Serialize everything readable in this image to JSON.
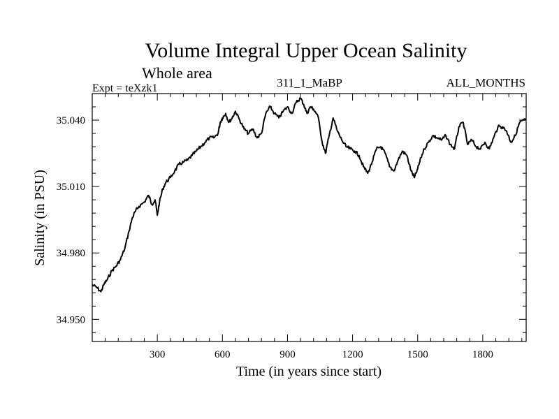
{
  "chart_data": {
    "type": "line",
    "title": "Volume Integral Upper Ocean Salinity",
    "subtitle": "Whole area",
    "left_label": "Expt = teXzk1",
    "center_label": "311_1_MaBP",
    "right_label": "ALL_MONTHS",
    "xlabel": "Time (in years since start)",
    "ylabel": "Salinity (in PSU)",
    "xlim": [
      0,
      2000
    ],
    "ylim": [
      34.94,
      35.052
    ],
    "x_ticks": [
      300,
      600,
      900,
      1200,
      1500,
      1800
    ],
    "x_tick_labels": [
      "300",
      "600",
      "900",
      "1200",
      "1500",
      "1800"
    ],
    "y_ticks": [
      34.95,
      34.98,
      35.01,
      35.04
    ],
    "y_tick_labels": [
      "34.950",
      "34.980",
      "35.010",
      "35.040"
    ],
    "series": [
      {
        "name": "salinity",
        "color": "#000000",
        "x": [
          0,
          20,
          40,
          55,
          70,
          90,
          110,
          130,
          150,
          170,
          185,
          200,
          215,
          240,
          260,
          275,
          290,
          300,
          310,
          325,
          340,
          360,
          380,
          400,
          420,
          440,
          460,
          480,
          500,
          520,
          540,
          560,
          580,
          590,
          600,
          615,
          630,
          645,
          660,
          680,
          700,
          720,
          740,
          760,
          780,
          800,
          820,
          840,
          860,
          880,
          900,
          920,
          940,
          960,
          975,
          990,
          1005,
          1020,
          1040,
          1060,
          1075,
          1090,
          1110,
          1130,
          1150,
          1170,
          1190,
          1210,
          1230,
          1250,
          1270,
          1290,
          1310,
          1330,
          1350,
          1370,
          1390,
          1410,
          1430,
          1450,
          1470,
          1485,
          1500,
          1515,
          1530,
          1550,
          1570,
          1590,
          1610,
          1630,
          1650,
          1670,
          1690,
          1710,
          1730,
          1750,
          1770,
          1790,
          1810,
          1830,
          1850,
          1870,
          1890,
          1910,
          1930,
          1950,
          1970,
          1990,
          2000
        ],
        "y": [
          34.9655,
          34.9645,
          34.9625,
          34.966,
          34.968,
          34.972,
          34.974,
          34.977,
          34.982,
          34.99,
          34.996,
          34.999,
          35.001,
          35.003,
          35.006,
          35.002,
          35.004,
          34.997,
          35.003,
          35.009,
          35.012,
          35.014,
          35.017,
          35.02,
          35.021,
          35.022,
          35.024,
          35.026,
          35.028,
          35.03,
          35.032,
          35.032,
          35.034,
          35.039,
          35.041,
          35.043,
          35.039,
          35.041,
          35.044,
          35.04,
          35.036,
          35.034,
          35.036,
          35.032,
          35.034,
          35.043,
          35.046,
          35.043,
          35.041,
          35.044,
          35.046,
          35.043,
          35.048,
          35.05,
          35.047,
          35.043,
          35.046,
          35.045,
          35.042,
          35.03,
          35.025,
          35.032,
          35.041,
          35.035,
          35.031,
          35.028,
          35.027,
          35.026,
          35.024,
          35.019,
          35.016,
          35.021,
          35.027,
          35.028,
          35.025,
          35.019,
          35.017,
          35.022,
          35.026,
          35.024,
          35.017,
          35.014,
          35.018,
          35.023,
          35.027,
          35.03,
          35.033,
          35.032,
          35.031,
          35.033,
          35.029,
          35.027,
          35.037,
          35.039,
          35.029,
          35.031,
          35.028,
          35.027,
          35.03,
          35.027,
          35.032,
          35.037,
          35.037,
          35.035,
          35.03,
          35.033,
          35.039,
          35.04,
          35.04
        ]
      }
    ]
  }
}
